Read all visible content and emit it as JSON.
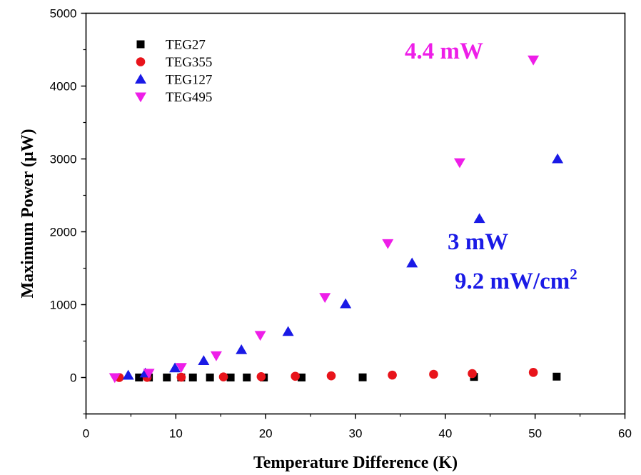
{
  "chart_data": {
    "type": "scatter",
    "title": "",
    "xlabel": "Temperature Difference (K)",
    "ylabel": "Maximum Power (μW)",
    "xlim": [
      0,
      60
    ],
    "ylim": [
      -500,
      5000
    ],
    "xticks": [
      0,
      10,
      20,
      30,
      40,
      50,
      60
    ],
    "yticks": [
      0,
      1000,
      2000,
      3000,
      4000,
      5000
    ],
    "grid": false,
    "legend_position": "top-left",
    "series": [
      {
        "name": "TEG27",
        "marker": "square",
        "color": "#000000",
        "x": [
          5.9,
          7.0,
          9.0,
          10.6,
          11.9,
          13.8,
          16.1,
          17.9,
          19.8,
          24.0,
          30.8,
          43.2,
          52.4
        ],
        "y": [
          0,
          0,
          0,
          0,
          0,
          0,
          0,
          0,
          0,
          0,
          2,
          8,
          12
        ]
      },
      {
        "name": "TEG355",
        "marker": "circle",
        "color": "#e8141b",
        "x": [
          3.7,
          6.8,
          10.6,
          15.3,
          19.5,
          23.3,
          27.3,
          34.1,
          38.7,
          43.0,
          49.8
        ],
        "y": [
          0,
          2,
          4,
          8,
          12,
          17,
          23,
          33,
          44,
          54,
          70
        ]
      },
      {
        "name": "TEG127",
        "marker": "triangle-up",
        "color": "#1a1ae6",
        "x": [
          4.7,
          6.6,
          9.9,
          13.1,
          17.3,
          22.5,
          28.9,
          36.3,
          43.8,
          52.5
        ],
        "y": [
          30,
          60,
          130,
          230,
          380,
          630,
          1010,
          1570,
          2180,
          3000
        ]
      },
      {
        "name": "TEG495",
        "marker": "triangle-down",
        "color": "#ee1ee8",
        "x": [
          3.2,
          7.0,
          10.6,
          14.5,
          19.4,
          26.6,
          33.6,
          41.6,
          49.8
        ],
        "y": [
          0,
          60,
          140,
          300,
          580,
          1100,
          1840,
          2950,
          4360
        ]
      }
    ],
    "annotations": [
      {
        "id": "teg495_power",
        "text": "4.4 mW",
        "color": "#ee1ee8"
      },
      {
        "id": "teg127_power",
        "text": "3 mW",
        "color": "#1a1ae6"
      },
      {
        "id": "teg127_density",
        "text": "9.2 mW/cm",
        "sup": "2",
        "color": "#1a1ae6"
      }
    ]
  }
}
